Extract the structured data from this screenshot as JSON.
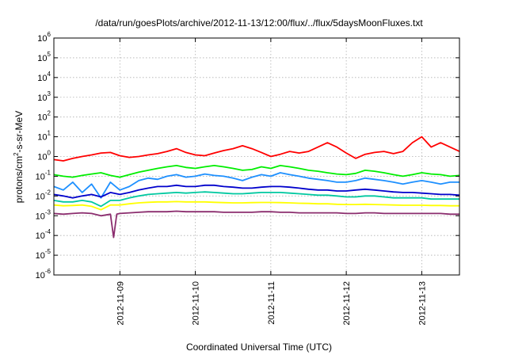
{
  "chart_data": {
    "type": "line",
    "title": "/data/run/goesPlots/archive/2012-11-13/12:00/flux/../flux/5daysMoonFluxes.txt",
    "xlabel": "Coordinated Universal Time (UTC)",
    "ylabel": "protons/cm2-s-sr-MeV",
    "ylabel_parts": {
      "before": "protons/cm",
      "sup": "2",
      "after": "-s-sr-MeV"
    },
    "yscale": "log",
    "ylim": [
      1e-06,
      1000000.0
    ],
    "y_ticks": [
      {
        "value": 1e-06,
        "base": "10",
        "exp": "-6"
      },
      {
        "value": 1e-05,
        "base": "10",
        "exp": "-5"
      },
      {
        "value": 0.0001,
        "base": "10",
        "exp": "-4"
      },
      {
        "value": 0.001,
        "base": "10",
        "exp": "-3"
      },
      {
        "value": 0.01,
        "base": "10",
        "exp": "-2"
      },
      {
        "value": 0.1,
        "base": "10",
        "exp": "-1"
      },
      {
        "value": 1,
        "base": "10",
        "exp": "0"
      },
      {
        "value": 10,
        "base": "10",
        "exp": "1"
      },
      {
        "value": 100,
        "base": "10",
        "exp": "2"
      },
      {
        "value": 1000,
        "base": "10",
        "exp": "3"
      },
      {
        "value": 10000,
        "base": "10",
        "exp": "4"
      },
      {
        "value": 100000,
        "base": "10",
        "exp": "5"
      },
      {
        "value": 1000000,
        "base": "10",
        "exp": "6"
      }
    ],
    "xlim": [
      "2012-11-08 03:00",
      "2012-11-13 12:00"
    ],
    "x_ticks": [
      "2012-11-09",
      "2012-11-10",
      "2012-11-11",
      "2012-11-12",
      "2012-11-13"
    ],
    "grid": true,
    "legend": "none",
    "series": [
      {
        "color": "#ff0000",
        "x": [
          "2012-11-08 03:00",
          "2012-11-08 06:00",
          "2012-11-08 09:00",
          "2012-11-08 12:00",
          "2012-11-08 15:00",
          "2012-11-08 18:00",
          "2012-11-08 21:00",
          "2012-11-09 00:00",
          "2012-11-09 03:00",
          "2012-11-09 06:00",
          "2012-11-09 09:00",
          "2012-11-09 12:00",
          "2012-11-09 15:00",
          "2012-11-09 18:00",
          "2012-11-09 21:00",
          "2012-11-10 00:00",
          "2012-11-10 03:00",
          "2012-11-10 06:00",
          "2012-11-10 09:00",
          "2012-11-10 12:00",
          "2012-11-10 15:00",
          "2012-11-10 18:00",
          "2012-11-10 21:00",
          "2012-11-11 00:00",
          "2012-11-11 03:00",
          "2012-11-11 06:00",
          "2012-11-11 09:00",
          "2012-11-11 12:00",
          "2012-11-11 15:00",
          "2012-11-11 18:00",
          "2012-11-11 21:00",
          "2012-11-12 00:00",
          "2012-11-12 03:00",
          "2012-11-12 06:00",
          "2012-11-12 09:00",
          "2012-11-12 12:00",
          "2012-11-12 15:00",
          "2012-11-12 18:00",
          "2012-11-12 21:00",
          "2012-11-13 00:00",
          "2012-11-13 03:00",
          "2012-11-13 06:00",
          "2012-11-13 09:00",
          "2012-11-13 12:00"
        ],
        "values": [
          0.7,
          0.6,
          0.8,
          1.0,
          1.2,
          1.5,
          1.6,
          1.1,
          0.9,
          1.0,
          1.2,
          1.4,
          1.8,
          2.5,
          1.6,
          1.2,
          1.1,
          1.5,
          2.0,
          2.5,
          3.5,
          2.5,
          1.6,
          1.0,
          1.3,
          1.8,
          1.5,
          1.8,
          3.0,
          5.0,
          3.0,
          1.5,
          0.8,
          1.3,
          1.6,
          1.8,
          1.4,
          1.8,
          5.0,
          10.0,
          3.0,
          5.0,
          3.0,
          1.8
        ]
      },
      {
        "color": "#00ee00",
        "x": [
          "2012-11-08 03:00",
          "2012-11-08 06:00",
          "2012-11-08 09:00",
          "2012-11-08 12:00",
          "2012-11-08 15:00",
          "2012-11-08 18:00",
          "2012-11-08 21:00",
          "2012-11-09 00:00",
          "2012-11-09 03:00",
          "2012-11-09 06:00",
          "2012-11-09 09:00",
          "2012-11-09 12:00",
          "2012-11-09 15:00",
          "2012-11-09 18:00",
          "2012-11-09 21:00",
          "2012-11-10 00:00",
          "2012-11-10 03:00",
          "2012-11-10 06:00",
          "2012-11-10 09:00",
          "2012-11-10 12:00",
          "2012-11-10 15:00",
          "2012-11-10 18:00",
          "2012-11-10 21:00",
          "2012-11-11 00:00",
          "2012-11-11 03:00",
          "2012-11-11 06:00",
          "2012-11-11 09:00",
          "2012-11-11 12:00",
          "2012-11-11 15:00",
          "2012-11-11 18:00",
          "2012-11-11 21:00",
          "2012-11-12 00:00",
          "2012-11-12 03:00",
          "2012-11-12 06:00",
          "2012-11-12 09:00",
          "2012-11-12 12:00",
          "2012-11-12 15:00",
          "2012-11-12 18:00",
          "2012-11-12 21:00",
          "2012-11-13 00:00",
          "2012-11-13 03:00",
          "2012-11-13 06:00",
          "2012-11-13 09:00",
          "2012-11-13 12:00"
        ],
        "values": [
          0.12,
          0.1,
          0.09,
          0.11,
          0.13,
          0.15,
          0.11,
          0.09,
          0.12,
          0.16,
          0.2,
          0.25,
          0.3,
          0.35,
          0.28,
          0.25,
          0.3,
          0.35,
          0.3,
          0.25,
          0.2,
          0.22,
          0.3,
          0.25,
          0.35,
          0.3,
          0.25,
          0.2,
          0.18,
          0.15,
          0.13,
          0.12,
          0.14,
          0.2,
          0.18,
          0.15,
          0.12,
          0.1,
          0.12,
          0.15,
          0.13,
          0.12,
          0.1,
          0.11
        ]
      },
      {
        "color": "#1e90ff",
        "x": [
          "2012-11-08 03:00",
          "2012-11-08 06:00",
          "2012-11-08 09:00",
          "2012-11-08 12:00",
          "2012-11-08 15:00",
          "2012-11-08 18:00",
          "2012-11-08 21:00",
          "2012-11-09 00:00",
          "2012-11-09 03:00",
          "2012-11-09 06:00",
          "2012-11-09 09:00",
          "2012-11-09 12:00",
          "2012-11-09 15:00",
          "2012-11-09 18:00",
          "2012-11-09 21:00",
          "2012-11-10 00:00",
          "2012-11-10 03:00",
          "2012-11-10 06:00",
          "2012-11-10 09:00",
          "2012-11-10 12:00",
          "2012-11-10 15:00",
          "2012-11-10 18:00",
          "2012-11-10 21:00",
          "2012-11-11 00:00",
          "2012-11-11 03:00",
          "2012-11-11 06:00",
          "2012-11-11 09:00",
          "2012-11-11 12:00",
          "2012-11-11 15:00",
          "2012-11-11 18:00",
          "2012-11-11 21:00",
          "2012-11-12 00:00",
          "2012-11-12 03:00",
          "2012-11-12 06:00",
          "2012-11-12 09:00",
          "2012-11-12 12:00",
          "2012-11-12 15:00",
          "2012-11-12 18:00",
          "2012-11-12 21:00",
          "2012-11-13 00:00",
          "2012-11-13 03:00",
          "2012-11-13 06:00",
          "2012-11-13 09:00",
          "2012-11-13 12:00"
        ],
        "values": [
          0.03,
          0.02,
          0.05,
          0.015,
          0.04,
          0.008,
          0.05,
          0.02,
          0.03,
          0.06,
          0.08,
          0.07,
          0.1,
          0.12,
          0.09,
          0.1,
          0.13,
          0.11,
          0.1,
          0.08,
          0.06,
          0.09,
          0.12,
          0.1,
          0.15,
          0.12,
          0.1,
          0.08,
          0.07,
          0.06,
          0.05,
          0.05,
          0.06,
          0.08,
          0.07,
          0.06,
          0.05,
          0.04,
          0.05,
          0.06,
          0.05,
          0.04,
          0.05,
          0.05
        ]
      },
      {
        "color": "#0000cc",
        "x": [
          "2012-11-08 03:00",
          "2012-11-08 06:00",
          "2012-11-08 09:00",
          "2012-11-08 12:00",
          "2012-11-08 15:00",
          "2012-11-08 18:00",
          "2012-11-08 21:00",
          "2012-11-09 00:00",
          "2012-11-09 03:00",
          "2012-11-09 06:00",
          "2012-11-09 09:00",
          "2012-11-09 12:00",
          "2012-11-09 15:00",
          "2012-11-09 18:00",
          "2012-11-09 21:00",
          "2012-11-10 00:00",
          "2012-11-10 03:00",
          "2012-11-10 06:00",
          "2012-11-10 09:00",
          "2012-11-10 12:00",
          "2012-11-10 15:00",
          "2012-11-10 18:00",
          "2012-11-10 21:00",
          "2012-11-11 00:00",
          "2012-11-11 03:00",
          "2012-11-11 06:00",
          "2012-11-11 09:00",
          "2012-11-11 12:00",
          "2012-11-11 15:00",
          "2012-11-11 18:00",
          "2012-11-11 21:00",
          "2012-11-12 00:00",
          "2012-11-12 03:00",
          "2012-11-12 06:00",
          "2012-11-12 09:00",
          "2012-11-12 12:00",
          "2012-11-12 15:00",
          "2012-11-12 18:00",
          "2012-11-12 21:00",
          "2012-11-13 00:00",
          "2012-11-13 03:00",
          "2012-11-13 06:00",
          "2012-11-13 09:00",
          "2012-11-13 12:00"
        ],
        "values": [
          0.012,
          0.01,
          0.008,
          0.01,
          0.012,
          0.009,
          0.015,
          0.012,
          0.015,
          0.02,
          0.025,
          0.03,
          0.03,
          0.035,
          0.03,
          0.03,
          0.035,
          0.035,
          0.03,
          0.028,
          0.025,
          0.025,
          0.028,
          0.03,
          0.03,
          0.028,
          0.025,
          0.022,
          0.02,
          0.02,
          0.018,
          0.018,
          0.02,
          0.022,
          0.02,
          0.018,
          0.016,
          0.015,
          0.015,
          0.014,
          0.013,
          0.012,
          0.012,
          0.011
        ]
      },
      {
        "color": "#00c8a0",
        "x": [
          "2012-11-08 03:00",
          "2012-11-08 06:00",
          "2012-11-08 09:00",
          "2012-11-08 12:00",
          "2012-11-08 15:00",
          "2012-11-08 18:00",
          "2012-11-08 21:00",
          "2012-11-09 00:00",
          "2012-11-09 03:00",
          "2012-11-09 06:00",
          "2012-11-09 09:00",
          "2012-11-09 12:00",
          "2012-11-09 15:00",
          "2012-11-09 18:00",
          "2012-11-09 21:00",
          "2012-11-10 00:00",
          "2012-11-10 03:00",
          "2012-11-10 06:00",
          "2012-11-10 09:00",
          "2012-11-10 12:00",
          "2012-11-10 15:00",
          "2012-11-10 18:00",
          "2012-11-10 21:00",
          "2012-11-11 00:00",
          "2012-11-11 03:00",
          "2012-11-11 06:00",
          "2012-11-11 09:00",
          "2012-11-11 12:00",
          "2012-11-11 15:00",
          "2012-11-11 18:00",
          "2012-11-11 21:00",
          "2012-11-12 00:00",
          "2012-11-12 03:00",
          "2012-11-12 06:00",
          "2012-11-12 09:00",
          "2012-11-12 12:00",
          "2012-11-12 15:00",
          "2012-11-12 18:00",
          "2012-11-12 21:00",
          "2012-11-13 00:00",
          "2012-11-13 03:00",
          "2012-11-13 06:00",
          "2012-11-13 09:00",
          "2012-11-13 12:00"
        ],
        "values": [
          0.006,
          0.005,
          0.005,
          0.006,
          0.005,
          0.003,
          0.006,
          0.006,
          0.008,
          0.01,
          0.012,
          0.013,
          0.014,
          0.015,
          0.014,
          0.015,
          0.016,
          0.015,
          0.014,
          0.013,
          0.013,
          0.014,
          0.015,
          0.015,
          0.015,
          0.014,
          0.013,
          0.012,
          0.011,
          0.011,
          0.01,
          0.009,
          0.009,
          0.01,
          0.01,
          0.009,
          0.008,
          0.008,
          0.008,
          0.008,
          0.007,
          0.007,
          0.007,
          0.007
        ]
      },
      {
        "color": "#ffff00",
        "x": [
          "2012-11-08 03:00",
          "2012-11-08 06:00",
          "2012-11-08 09:00",
          "2012-11-08 12:00",
          "2012-11-08 15:00",
          "2012-11-08 18:00",
          "2012-11-08 21:00",
          "2012-11-09 00:00",
          "2012-11-09 03:00",
          "2012-11-09 06:00",
          "2012-11-09 09:00",
          "2012-11-09 12:00",
          "2012-11-09 15:00",
          "2012-11-09 18:00",
          "2012-11-09 21:00",
          "2012-11-10 00:00",
          "2012-11-10 03:00",
          "2012-11-10 06:00",
          "2012-11-10 09:00",
          "2012-11-10 12:00",
          "2012-11-10 15:00",
          "2012-11-10 18:00",
          "2012-11-10 21:00",
          "2012-11-11 00:00",
          "2012-11-11 03:00",
          "2012-11-11 06:00",
          "2012-11-11 09:00",
          "2012-11-11 12:00",
          "2012-11-11 15:00",
          "2012-11-11 18:00",
          "2012-11-11 21:00",
          "2012-11-12 00:00",
          "2012-11-12 03:00",
          "2012-11-12 06:00",
          "2012-11-12 09:00",
          "2012-11-12 12:00",
          "2012-11-12 15:00",
          "2012-11-12 18:00",
          "2012-11-12 21:00",
          "2012-11-13 00:00",
          "2012-11-13 03:00",
          "2012-11-13 06:00",
          "2012-11-13 09:00",
          "2012-11-13 12:00"
        ],
        "values": [
          0.0035,
          0.0032,
          0.0033,
          0.0035,
          0.003,
          0.002,
          0.0035,
          0.0035,
          0.004,
          0.0045,
          0.0048,
          0.005,
          0.005,
          0.0052,
          0.005,
          0.005,
          0.005,
          0.0048,
          0.0046,
          0.0045,
          0.0045,
          0.0046,
          0.0047,
          0.0047,
          0.0046,
          0.0045,
          0.0043,
          0.0042,
          0.004,
          0.004,
          0.0038,
          0.0037,
          0.0037,
          0.0038,
          0.0037,
          0.0036,
          0.0035,
          0.0034,
          0.0034,
          0.0034,
          0.0033,
          0.0033,
          0.0032,
          0.0032
        ]
      },
      {
        "color": "#8b2d6e",
        "x": [
          "2012-11-08 03:00",
          "2012-11-08 06:00",
          "2012-11-08 09:00",
          "2012-11-08 12:00",
          "2012-11-08 15:00",
          "2012-11-08 18:00",
          "2012-11-08 21:00",
          "2012-11-08 22:00",
          "2012-11-08 23:00",
          "2012-11-09 00:00",
          "2012-11-09 03:00",
          "2012-11-09 06:00",
          "2012-11-09 09:00",
          "2012-11-09 12:00",
          "2012-11-09 15:00",
          "2012-11-09 18:00",
          "2012-11-09 21:00",
          "2012-11-10 00:00",
          "2012-11-10 03:00",
          "2012-11-10 06:00",
          "2012-11-10 09:00",
          "2012-11-10 12:00",
          "2012-11-10 15:00",
          "2012-11-10 18:00",
          "2012-11-10 21:00",
          "2012-11-11 00:00",
          "2012-11-11 03:00",
          "2012-11-11 06:00",
          "2012-11-11 09:00",
          "2012-11-11 12:00",
          "2012-11-11 15:00",
          "2012-11-11 18:00",
          "2012-11-11 21:00",
          "2012-11-12 00:00",
          "2012-11-12 03:00",
          "2012-11-12 06:00",
          "2012-11-12 09:00",
          "2012-11-12 12:00",
          "2012-11-12 15:00",
          "2012-11-12 18:00",
          "2012-11-12 21:00",
          "2012-11-13 00:00",
          "2012-11-13 03:00",
          "2012-11-13 06:00",
          "2012-11-13 09:00",
          "2012-11-13 12:00"
        ],
        "values": [
          0.0013,
          0.0012,
          0.0013,
          0.0014,
          0.0013,
          0.001,
          0.0012,
          8e-05,
          0.0012,
          0.0013,
          0.0014,
          0.0015,
          0.0016,
          0.0016,
          0.0016,
          0.0017,
          0.0016,
          0.0016,
          0.0016,
          0.0016,
          0.0015,
          0.0015,
          0.0015,
          0.0015,
          0.0016,
          0.0016,
          0.0015,
          0.0015,
          0.0014,
          0.0014,
          0.0014,
          0.0014,
          0.0014,
          0.0013,
          0.0013,
          0.0014,
          0.0014,
          0.0013,
          0.0013,
          0.0013,
          0.0013,
          0.0013,
          0.0013,
          0.0013,
          0.0012,
          0.0012
        ]
      }
    ]
  }
}
